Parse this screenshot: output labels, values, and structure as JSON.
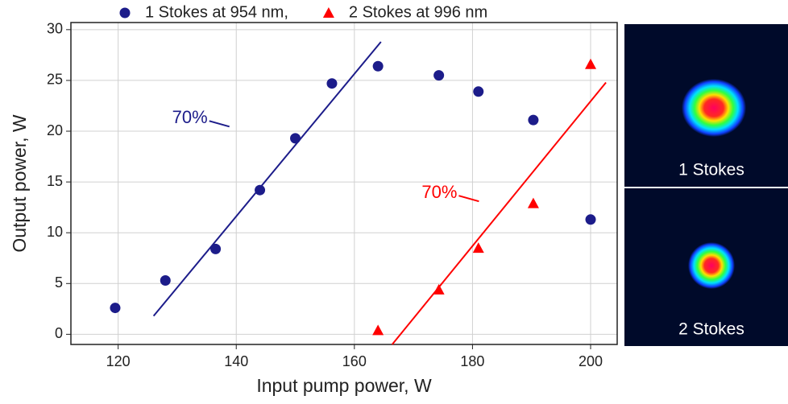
{
  "chart_data": {
    "type": "scatter",
    "xlabel": "Input pump power, W",
    "ylabel": "Output power, W",
    "xlim": [
      112,
      204.5
    ],
    "ylim": [
      -1,
      30.7
    ],
    "xticks": [
      120,
      140,
      160,
      180,
      200
    ],
    "yticks": [
      0,
      5,
      10,
      15,
      20,
      25,
      30
    ],
    "grid": true,
    "legend": "top",
    "series": [
      {
        "name": "1 Stokes at 954 nm,",
        "color": "#1c1c8a",
        "marker": "circle",
        "x": [
          119.5,
          128,
          136.5,
          144,
          150,
          156.2,
          164,
          174.3,
          181,
          190.3,
          200
        ],
        "values": [
          2.6,
          5.3,
          8.4,
          14.2,
          19.3,
          24.7,
          26.4,
          25.5,
          23.9,
          21.1,
          11.3
        ]
      },
      {
        "name": "2 Stokes at 996 nm",
        "color": "#ff0000",
        "marker": "triangle",
        "x": [
          164,
          174.3,
          181,
          190.3,
          200
        ],
        "values": [
          0.4,
          4.4,
          8.5,
          12.9,
          26.6
        ]
      }
    ],
    "fit_lines": [
      {
        "color": "#1c1c8a",
        "x": [
          126,
          164.5
        ],
        "values": [
          1.8,
          28.8
        ],
        "label": "70%"
      },
      {
        "color": "#ff0000",
        "x": [
          166.4,
          202.6
        ],
        "values": [
          -1,
          24.8
        ],
        "label": "70%"
      }
    ],
    "inset_labels": [
      "1 Stokes",
      "2 Stokes"
    ]
  }
}
